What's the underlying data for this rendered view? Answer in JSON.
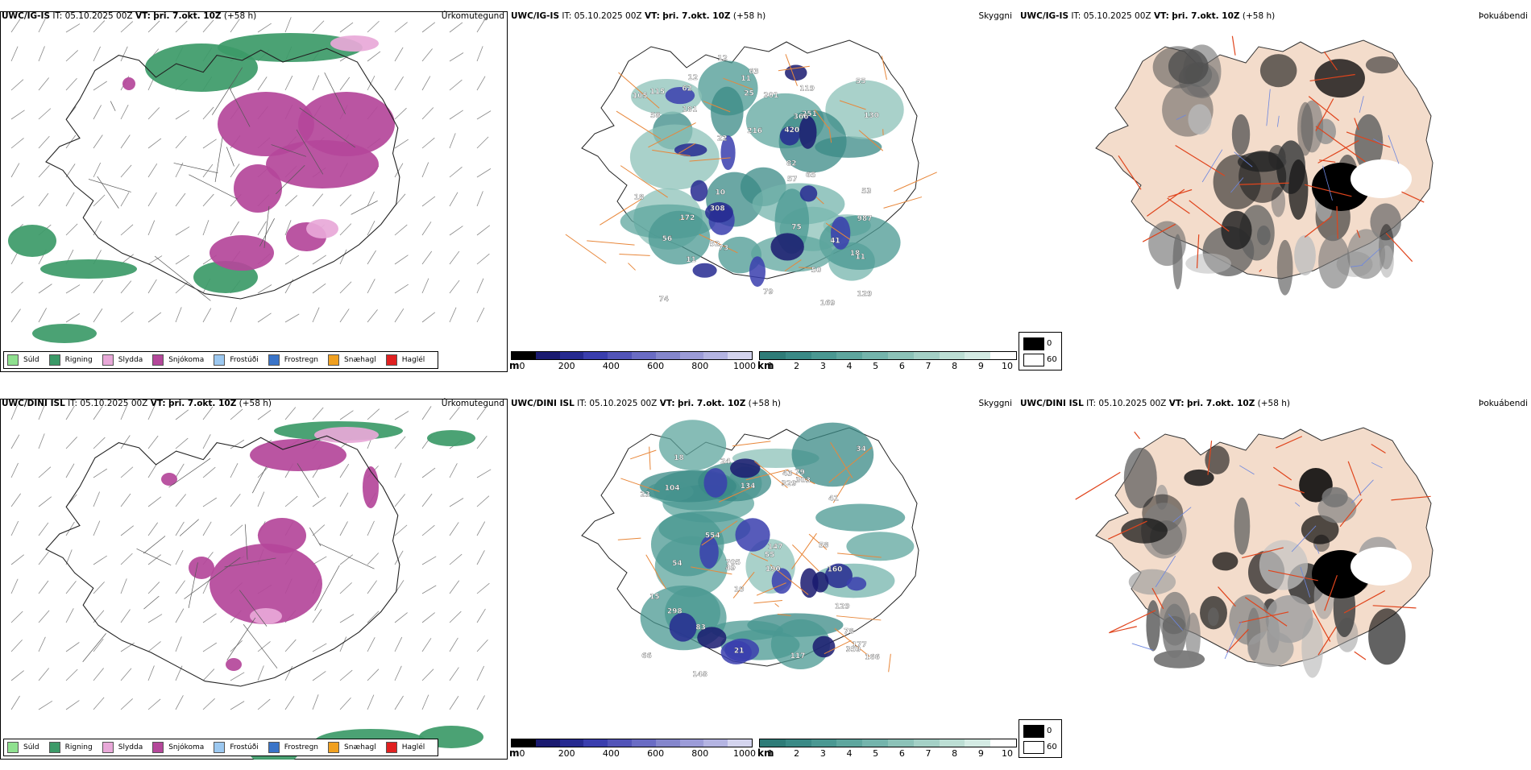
{
  "common": {
    "it_label": "IT: 05.10.2025 00Z",
    "vt_prefix": "VT:",
    "vt_value": "þri. 7.okt. 10Z",
    "lead": "(+58 h)"
  },
  "rows": [
    {
      "model": "UWC/IG-IS"
    },
    {
      "model": "UWC/DINI ISL"
    }
  ],
  "titles": {
    "precip": "Úrkomutegund",
    "visibility": "Skyggni",
    "fog": "Þokuábendi"
  },
  "precip_legend": [
    {
      "label": "Súld",
      "color": "#8fe08f"
    },
    {
      "label": "Rigning",
      "color": "#3c9a68"
    },
    {
      "label": "Slydda",
      "color": "#e8a8d8"
    },
    {
      "label": "Snjókoma",
      "color": "#b4479a"
    },
    {
      "label": "Frostúði",
      "color": "#9cc8f0"
    },
    {
      "label": "Frostregn",
      "color": "#3a74c8"
    },
    {
      "label": "Snæhagl",
      "color": "#f0a020"
    },
    {
      "label": "Haglél",
      "color": "#e02020"
    }
  ],
  "cloud_base": {
    "unit": "m",
    "ticks": [
      "0",
      "200",
      "400",
      "600",
      "800",
      "1000"
    ],
    "colors": [
      "#000000",
      "#1a1a70",
      "#262a90",
      "#3a3eae",
      "#5254b8",
      "#6a6cc4",
      "#8486cc",
      "#9c9cd8",
      "#b4b4e2",
      "#d4d4ee"
    ]
  },
  "visibility_bar": {
    "unit": "km",
    "ticks": [
      "1",
      "2",
      "3",
      "4",
      "5",
      "6",
      "7",
      "8",
      "9",
      "10"
    ],
    "colors": [
      "#2e7c78",
      "#3a8a86",
      "#4a9892",
      "#5ea69e",
      "#74b4ac",
      "#8cc2b8",
      "#a4d0c6",
      "#bcded4",
      "#d4ebe4",
      "#ffffff"
    ]
  },
  "fog_legend": {
    "high": "0",
    "low": "60"
  },
  "labels_top": [
    "181",
    "55",
    "18",
    "115",
    "10",
    "12",
    "129",
    "172",
    "22",
    "74",
    "41",
    "12",
    "53",
    "201",
    "308",
    "169",
    "251",
    "130",
    "987",
    "420",
    "216",
    "50",
    "75",
    "62",
    "79",
    "56",
    "63",
    "366",
    "73",
    "82",
    "11",
    "119",
    "18",
    "11",
    "25",
    "11",
    "52",
    "105",
    "65",
    "58",
    "57"
  ],
  "labels_bottom": [
    "34",
    "129",
    "24",
    "83",
    "104",
    "55",
    "41",
    "10",
    "54",
    "177",
    "23",
    "190",
    "359",
    "554",
    "66",
    "15",
    "147",
    "166",
    "160",
    "298",
    "117",
    "21",
    "705",
    "134",
    "148",
    "329",
    "303",
    "43",
    "18",
    "79",
    "78",
    "49",
    "58"
  ]
}
